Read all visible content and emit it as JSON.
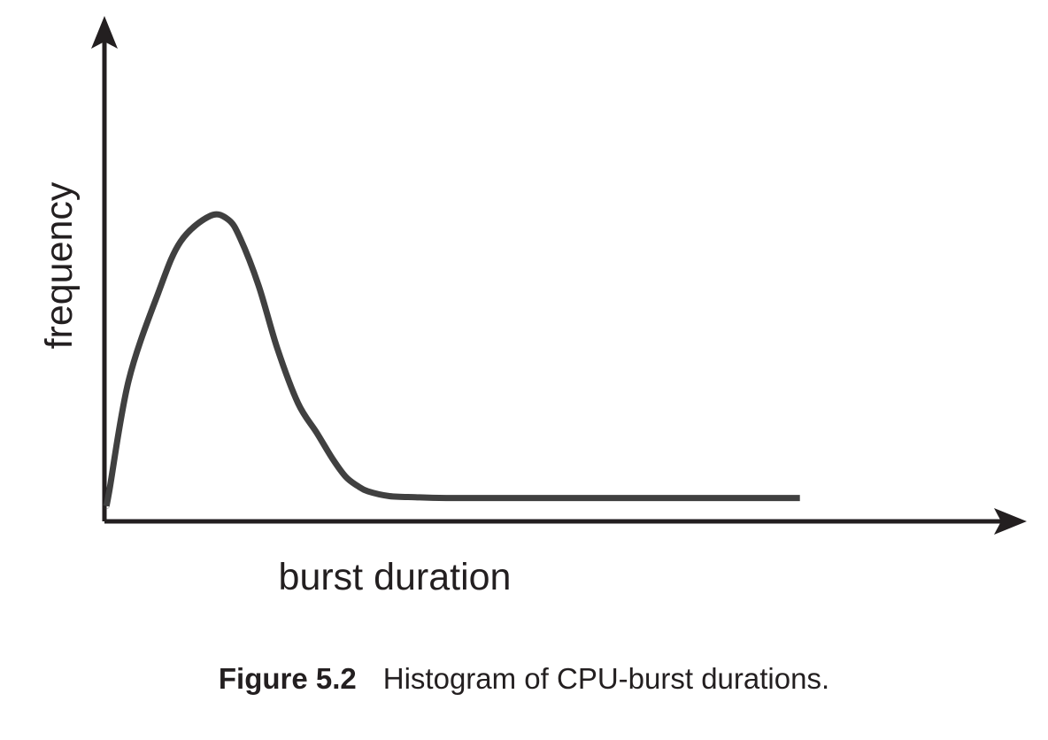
{
  "chart_data": {
    "type": "line",
    "title": "",
    "xlabel": "burst duration",
    "ylabel": "frequency",
    "x_ticks": [],
    "y_ticks": [],
    "grid": false,
    "legend": "none",
    "xlim": [
      0,
      100
    ],
    "ylim": [
      0,
      100
    ],
    "series": [
      {
        "color": "#404040",
        "x": [
          0,
          0.4,
          3,
          7,
          10,
          14,
          16.4,
          18,
          20.5,
          23,
          25.8,
          28.3,
          30.4,
          32.2,
          33.8,
          35.2,
          38.1,
          41.6,
          45.7,
          55,
          65,
          75,
          85,
          93.3
        ],
        "y": [
          2,
          6,
          36,
          60,
          74,
          81,
          80,
          75,
          62,
          45,
          30,
          22,
          15,
          10,
          7.5,
          6,
          4.7,
          4.4,
          4.2,
          4.2,
          4.2,
          4.2,
          4.2,
          4.2
        ]
      }
    ],
    "colors": {
      "axis": "#231f20",
      "curve": "#404040"
    }
  },
  "caption": {
    "number": "Figure 5.2",
    "text": "Histogram of CPU-burst durations."
  }
}
